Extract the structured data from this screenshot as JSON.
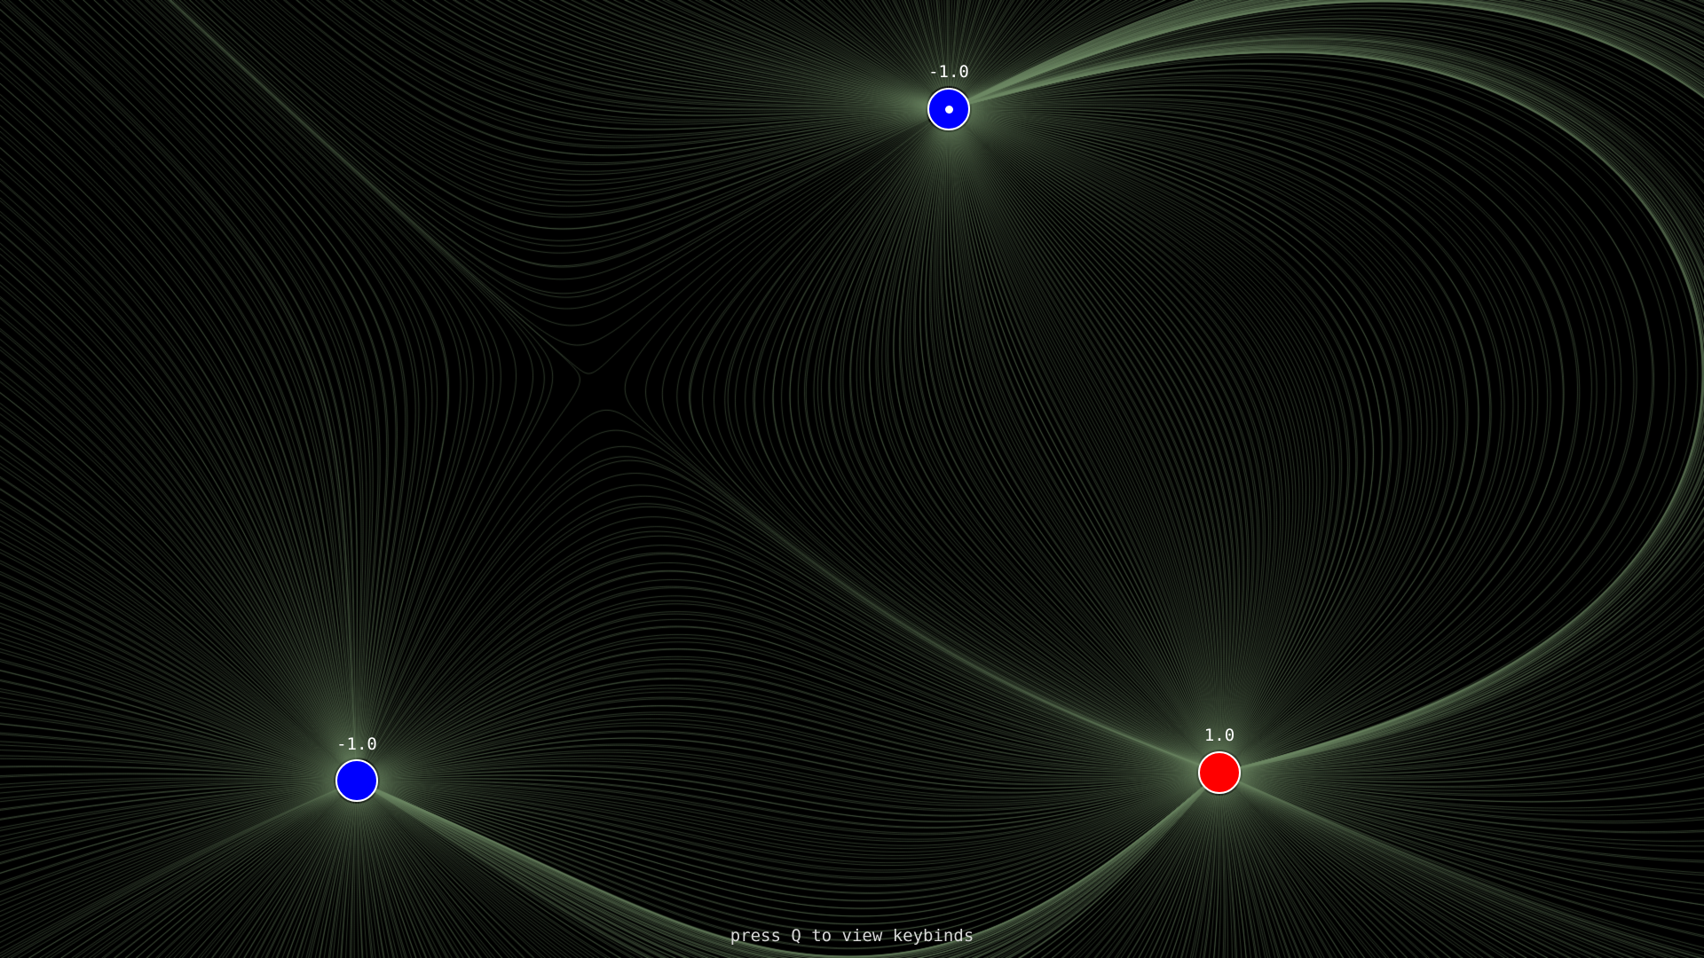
{
  "hint": {
    "text": "press Q to view keybinds"
  },
  "colors": {
    "background": "#000000",
    "field_line": "#6f8a66",
    "positive_charge": "#ff0000",
    "negative_charge": "#0000ff",
    "charge_outline": "#ffffff",
    "label_text": "#ffffff",
    "hint_text": "#d8d8d8"
  },
  "charges": [
    {
      "id": "charge-top",
      "label": "-1.0",
      "value": -1.0,
      "selected": true
    },
    {
      "id": "charge-bottom-left",
      "label": "-1.0",
      "value": -1.0,
      "selected": false
    },
    {
      "id": "charge-bottom-right",
      "label": "1.0",
      "value": 1.0,
      "selected": false
    }
  ]
}
